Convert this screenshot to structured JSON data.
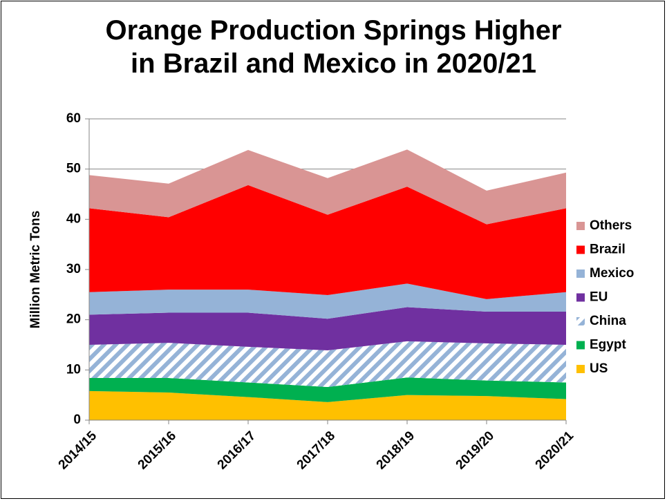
{
  "chart_data": {
    "type": "area",
    "title_lines": [
      "Orange Production Springs Higher",
      "in Brazil and Mexico in 2020/21"
    ],
    "xlabel": "",
    "ylabel": "Million Metric Tons",
    "ylim": [
      0,
      60
    ],
    "yticks": [
      0,
      10,
      20,
      30,
      40,
      50,
      60
    ],
    "categories": [
      "2014/15",
      "2015/16",
      "2016/17",
      "2017/18",
      "2018/19",
      "2019/20",
      "2020/21"
    ],
    "stacked": true,
    "grid": true,
    "legend_position": "right",
    "series": [
      {
        "name": "US",
        "color": "#FFC000",
        "pattern": "solid",
        "values": [
          5.8,
          5.5,
          4.6,
          3.6,
          5.0,
          4.8,
          4.2
        ]
      },
      {
        "name": "Egypt",
        "color": "#00B050",
        "pattern": "solid",
        "values": [
          2.6,
          2.9,
          2.9,
          3.0,
          3.5,
          3.1,
          3.3
        ]
      },
      {
        "name": "China",
        "color": "#95B3D7",
        "pattern": "diagonal-stripes",
        "values": [
          6.6,
          7.0,
          7.1,
          7.3,
          7.2,
          7.4,
          7.5
        ]
      },
      {
        "name": "EU",
        "color": "#7030A0",
        "pattern": "solid",
        "values": [
          6.0,
          6.0,
          6.8,
          6.3,
          6.8,
          6.3,
          6.6
        ]
      },
      {
        "name": "Mexico",
        "color": "#95B3D7",
        "pattern": "solid",
        "values": [
          4.5,
          4.6,
          4.6,
          4.7,
          4.7,
          2.5,
          3.9
        ]
      },
      {
        "name": "Brazil",
        "color": "#FF0000",
        "pattern": "solid",
        "values": [
          16.7,
          14.4,
          20.8,
          16.0,
          19.3,
          14.9,
          16.7
        ]
      },
      {
        "name": "Others",
        "color": "#D99594",
        "pattern": "solid",
        "values": [
          6.6,
          6.7,
          7.0,
          7.3,
          7.4,
          6.7,
          7.1
        ]
      }
    ],
    "legend_order": [
      "Others",
      "Brazil",
      "Mexico",
      "EU",
      "China",
      "Egypt",
      "US"
    ]
  }
}
